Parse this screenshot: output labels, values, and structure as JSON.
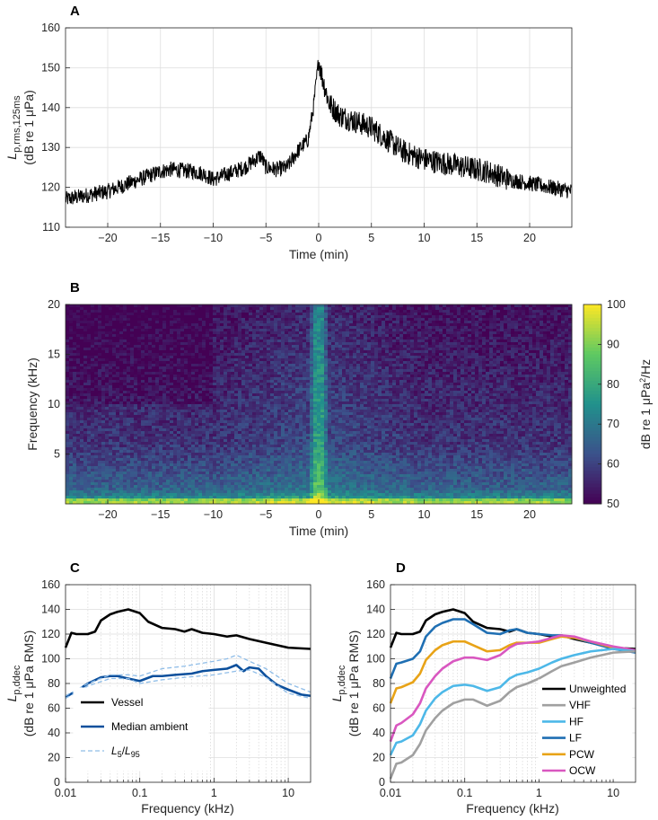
{
  "colors": {
    "black": "#000000",
    "vessel": "#000000",
    "median": "#0b4f9c",
    "percentile": "#8fbde8",
    "unweighted": "#000000",
    "vhf": "#a0a0a0",
    "hf": "#4db8e8",
    "lf": "#1f6fb3",
    "pcw": "#e8a317",
    "ocw": "#d957c0"
  },
  "chart_data": [
    {
      "panel": "A",
      "type": "line",
      "xlabel": "Time (min)",
      "ylabel_main": "L",
      "ylabel_sub": "p,rms,125ms",
      "ylabel_line2": "(dB re 1 μPa)",
      "xlim": [
        -24,
        24
      ],
      "ylim": [
        110,
        160
      ],
      "xticks": [
        -20,
        -15,
        -10,
        -5,
        0,
        5,
        10,
        15,
        20
      ],
      "yticks": [
        110,
        120,
        130,
        140,
        150,
        160
      ],
      "grid": true,
      "series": [
        {
          "name": "Lp,rms,125ms",
          "x": [
            -24,
            -22,
            -20,
            -18,
            -16,
            -15,
            -14,
            -12,
            -11,
            -10,
            -9,
            -8,
            -7,
            -6,
            -5.5,
            -5,
            -4,
            -3,
            -2,
            -1,
            -0.5,
            0,
            0.3,
            1,
            2,
            3,
            4,
            5,
            6,
            8,
            10,
            12,
            14,
            16,
            18,
            20,
            22,
            24
          ],
          "y": [
            117,
            118,
            119,
            121,
            123,
            124,
            124.5,
            124,
            123.5,
            122,
            123,
            124,
            125,
            127,
            128,
            125,
            124.5,
            125,
            129,
            132,
            140,
            152,
            148,
            141,
            138,
            137,
            136,
            135,
            133,
            129,
            127,
            126,
            125,
            124,
            122,
            121,
            120,
            119
          ],
          "noise_amplitude_db": 2
        }
      ]
    },
    {
      "panel": "B",
      "type": "heatmap",
      "xlabel": "Time (min)",
      "ylabel": "Frequency (kHz)",
      "xlim": [
        -24,
        24
      ],
      "ylim": [
        0,
        20
      ],
      "xticks": [
        -20,
        -15,
        -10,
        -5,
        0,
        5,
        10,
        15,
        20
      ],
      "yticks": [
        5,
        10,
        15,
        20
      ],
      "colorbar_label": "dB re 1 μPa²/Hz",
      "colorbar_ticks": [
        50,
        60,
        70,
        80,
        90,
        100
      ],
      "clim": [
        50,
        100
      ],
      "colormap": "viridis"
    },
    {
      "panel": "C",
      "type": "line",
      "xscale": "log",
      "xlabel": "Frequency (kHz)",
      "ylabel_main": "L",
      "ylabel_sub": "p,ddec",
      "ylabel_line2": "(dB re 1 μPa RMS)",
      "xlim": [
        0.01,
        20
      ],
      "ylim": [
        0,
        160
      ],
      "xticks": [
        0.01,
        0.1,
        1,
        10
      ],
      "xticklabels": [
        "0.01",
        "0.1",
        "1",
        "10"
      ],
      "yticks": [
        0,
        20,
        40,
        60,
        80,
        100,
        120,
        140,
        160
      ],
      "grid": true,
      "legend": {
        "placement": "lower-left",
        "entries": [
          {
            "label": "Vessel",
            "series": "vessel"
          },
          {
            "label": "Median ambient",
            "series": "median"
          },
          {
            "label_main": "L",
            "label_sub1": "5",
            "label_sep": "/",
            "label_main2": "L",
            "label_sub2": "95",
            "series": "percentile"
          }
        ]
      },
      "series": [
        {
          "name": "Vessel",
          "key": "vessel",
          "style": "solid",
          "x": [
            0.01,
            0.012,
            0.014,
            0.02,
            0.025,
            0.03,
            0.04,
            0.05,
            0.07,
            0.1,
            0.13,
            0.2,
            0.3,
            0.4,
            0.5,
            0.7,
            1,
            1.5,
            2,
            3,
            5,
            10,
            20
          ],
          "y": [
            109,
            121,
            120,
            120,
            122,
            131,
            136,
            138,
            140,
            137,
            130,
            125,
            124,
            122,
            124,
            121,
            120,
            118,
            119,
            116,
            113,
            109,
            108
          ]
        },
        {
          "name": "Median ambient",
          "key": "median",
          "style": "solid",
          "x": [
            0.01,
            0.015,
            0.02,
            0.03,
            0.04,
            0.05,
            0.07,
            0.1,
            0.15,
            0.2,
            0.3,
            0.5,
            0.7,
            1,
            1.5,
            2,
            2.5,
            3,
            4,
            5,
            7,
            10,
            15,
            20
          ],
          "y": [
            69,
            75,
            80,
            85,
            86,
            86,
            84,
            82,
            86,
            86,
            87,
            88,
            90,
            91,
            92,
            95,
            90,
            93,
            92,
            86,
            79,
            75,
            71,
            70
          ]
        },
        {
          "name": "L5",
          "key": "percentile",
          "style": "dashed",
          "x": [
            0.01,
            0.02,
            0.04,
            0.07,
            0.1,
            0.2,
            0.4,
            1,
            1.5,
            2,
            3,
            5,
            10,
            20
          ],
          "y": [
            70,
            80,
            87,
            87,
            86,
            92,
            94,
            98,
            100,
            103,
            98,
            92,
            80,
            73
          ]
        },
        {
          "name": "L95",
          "key": "percentile",
          "style": "dashed",
          "x": [
            0.01,
            0.02,
            0.04,
            0.07,
            0.1,
            0.2,
            0.4,
            1,
            2,
            3,
            5,
            10,
            20
          ],
          "y": [
            68,
            78,
            84,
            84,
            80,
            83,
            85,
            87,
            90,
            91,
            85,
            72,
            68
          ]
        }
      ]
    },
    {
      "panel": "D",
      "type": "line",
      "xscale": "log",
      "xlabel": "Frequency (kHz)",
      "ylabel_main": "L",
      "ylabel_sub": "p,ddec",
      "ylabel_line2": "(dB re 1 μPa RMS)",
      "xlim": [
        0.01,
        20
      ],
      "ylim": [
        0,
        160
      ],
      "xticks": [
        0.01,
        0.1,
        1,
        10
      ],
      "xticklabels": [
        "0.01",
        "0.1",
        "1",
        "10"
      ],
      "yticks": [
        0,
        20,
        40,
        60,
        80,
        100,
        120,
        140,
        160
      ],
      "grid": true,
      "legend": {
        "placement": "lower-right",
        "entries": [
          {
            "label": "Unweighted",
            "series": "unweighted"
          },
          {
            "label": "VHF",
            "series": "vhf"
          },
          {
            "label": "HF",
            "series": "hf"
          },
          {
            "label": "LF",
            "series": "lf"
          },
          {
            "label": "PCW",
            "series": "pcw"
          },
          {
            "label": "OCW",
            "series": "ocw"
          }
        ]
      },
      "series": [
        {
          "name": "Unweighted",
          "key": "unweighted",
          "x": [
            0.01,
            0.012,
            0.014,
            0.02,
            0.025,
            0.03,
            0.04,
            0.05,
            0.07,
            0.1,
            0.13,
            0.2,
            0.3,
            0.4,
            0.5,
            0.7,
            1,
            1.5,
            2,
            3,
            5,
            10,
            20
          ],
          "y": [
            109,
            121,
            120,
            120,
            122,
            131,
            136,
            138,
            140,
            137,
            130,
            125,
            124,
            122,
            124,
            121,
            120,
            118,
            119,
            116,
            113,
            109,
            108
          ]
        },
        {
          "name": "LF",
          "key": "lf",
          "x": [
            0.01,
            0.012,
            0.014,
            0.02,
            0.025,
            0.03,
            0.04,
            0.05,
            0.07,
            0.1,
            0.13,
            0.2,
            0.3,
            0.4,
            0.5,
            0.7,
            1,
            1.5,
            2,
            3,
            5,
            10,
            20
          ],
          "y": [
            84,
            96,
            97,
            100,
            106,
            118,
            126,
            129,
            132,
            132,
            128,
            121,
            120,
            123,
            124,
            121,
            120,
            119,
            119,
            117,
            113,
            108,
            105
          ]
        },
        {
          "name": "PCW",
          "key": "pcw",
          "x": [
            0.01,
            0.012,
            0.014,
            0.02,
            0.025,
            0.03,
            0.04,
            0.05,
            0.07,
            0.1,
            0.13,
            0.2,
            0.3,
            0.4,
            0.5,
            0.7,
            1,
            1.5,
            2,
            3,
            5,
            10,
            20
          ],
          "y": [
            64,
            76,
            77,
            81,
            88,
            99,
            107,
            111,
            114,
            114,
            111,
            106,
            107,
            111,
            113,
            113,
            113,
            116,
            118,
            117,
            114,
            109,
            106
          ]
        },
        {
          "name": "OCW",
          "key": "ocw",
          "x": [
            0.01,
            0.012,
            0.014,
            0.02,
            0.025,
            0.03,
            0.04,
            0.05,
            0.07,
            0.1,
            0.13,
            0.2,
            0.3,
            0.4,
            0.5,
            0.7,
            1,
            1.5,
            2,
            3,
            5,
            10,
            20
          ],
          "y": [
            33,
            46,
            48,
            55,
            64,
            76,
            86,
            92,
            98,
            101,
            101,
            99,
            103,
            109,
            112,
            113,
            114,
            117,
            119,
            118,
            114,
            110,
            107
          ]
        },
        {
          "name": "HF",
          "key": "hf",
          "x": [
            0.01,
            0.012,
            0.014,
            0.02,
            0.025,
            0.03,
            0.04,
            0.05,
            0.07,
            0.1,
            0.13,
            0.2,
            0.3,
            0.4,
            0.5,
            0.7,
            1,
            1.5,
            2,
            3,
            5,
            10,
            20
          ],
          "y": [
            22,
            32,
            33,
            38,
            47,
            58,
            68,
            73,
            78,
            79,
            78,
            74,
            77,
            84,
            87,
            89,
            92,
            97,
            100,
            103,
            106,
            108,
            106
          ]
        },
        {
          "name": "VHF",
          "key": "vhf",
          "x": [
            0.01,
            0.012,
            0.014,
            0.02,
            0.025,
            0.03,
            0.04,
            0.05,
            0.07,
            0.1,
            0.13,
            0.2,
            0.3,
            0.4,
            0.5,
            0.7,
            1,
            1.5,
            2,
            3,
            5,
            10,
            20
          ],
          "y": [
            3,
            15,
            16,
            22,
            31,
            42,
            52,
            58,
            64,
            67,
            67,
            62,
            66,
            73,
            77,
            80,
            84,
            90,
            94,
            97,
            101,
            105,
            106
          ]
        }
      ]
    }
  ]
}
